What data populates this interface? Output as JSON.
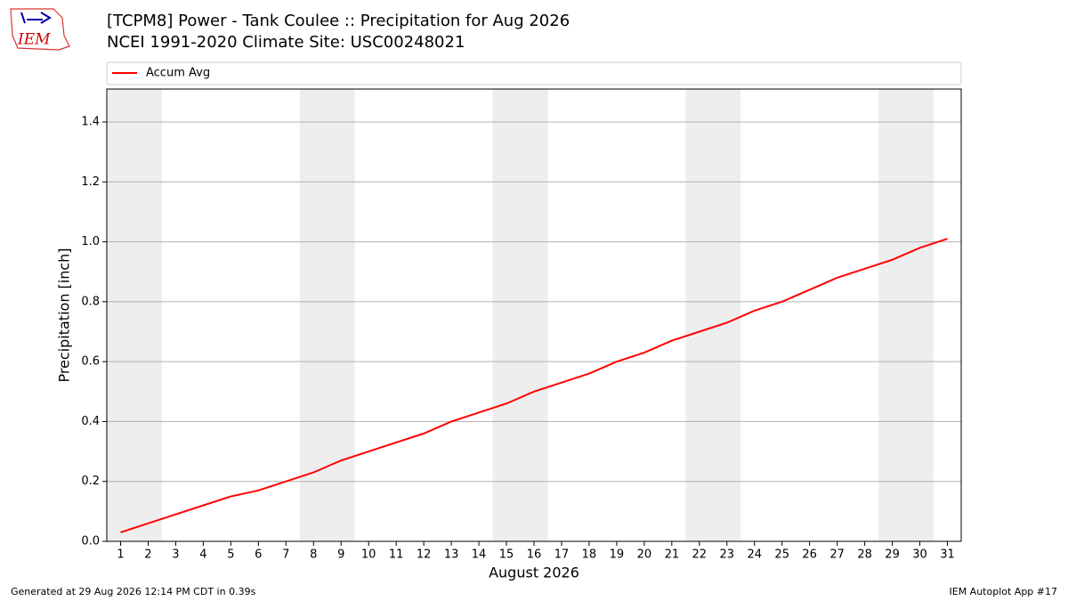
{
  "chart_data": {
    "type": "line",
    "title": "[TCPM8] Power - Tank Coulee :: Precipitation for Aug 2026",
    "subtitle": "NCEI 1991-2020 Climate Site: USC00248021",
    "xlabel": "August 2026",
    "ylabel": "Precipitation [inch]",
    "x": [
      1,
      2,
      3,
      4,
      5,
      6,
      7,
      8,
      9,
      10,
      11,
      12,
      13,
      14,
      15,
      16,
      17,
      18,
      19,
      20,
      21,
      22,
      23,
      24,
      25,
      26,
      27,
      28,
      29,
      30,
      31
    ],
    "series": [
      {
        "name": "Accum Avg",
        "color": "#ff0000",
        "values": [
          0.03,
          0.06,
          0.09,
          0.12,
          0.15,
          0.17,
          0.2,
          0.23,
          0.27,
          0.3,
          0.33,
          0.36,
          0.4,
          0.43,
          0.46,
          0.5,
          0.53,
          0.56,
          0.6,
          0.63,
          0.67,
          0.7,
          0.73,
          0.77,
          0.8,
          0.84,
          0.88,
          0.91,
          0.94,
          0.98,
          1.01
        ]
      }
    ],
    "xlim": [
      0.5,
      31.5
    ],
    "xticks": [
      1,
      2,
      3,
      4,
      5,
      6,
      7,
      8,
      9,
      10,
      11,
      12,
      13,
      14,
      15,
      16,
      17,
      18,
      19,
      20,
      21,
      22,
      23,
      24,
      25,
      26,
      27,
      28,
      29,
      30,
      31
    ],
    "ylim": [
      0,
      1.51
    ],
    "yticks": [
      {
        "value": 0,
        "label": "0.0"
      },
      0.2,
      0.4,
      0.6,
      0.8,
      {
        "value": 1,
        "label": "1.0"
      },
      1.2,
      1.4
    ],
    "grid": true,
    "shade_spans": [
      [
        0.5,
        2.5
      ],
      [
        7.5,
        9.5
      ],
      [
        14.5,
        16.5
      ],
      [
        21.5,
        23.5
      ],
      [
        28.5,
        30.5
      ]
    ],
    "shade_color": "#eeeeee",
    "legend": "top"
  },
  "logo_text": "IEM",
  "footer_left": "Generated at 29 Aug 2026 12:14 PM CDT in 0.39s",
  "footer_right": "IEM Autoplot App #17"
}
